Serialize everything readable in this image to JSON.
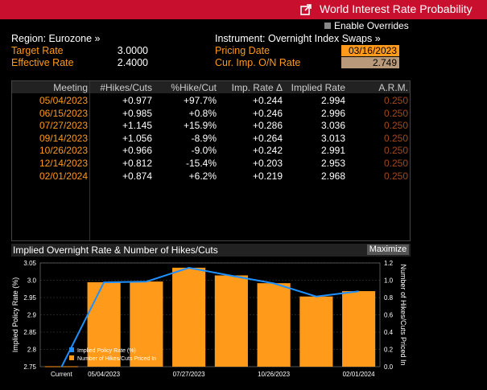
{
  "window": {
    "title": "World Interest Rate Probability"
  },
  "overrides": {
    "label": "Enable Overrides"
  },
  "left": {
    "region": "Region: Eurozone »",
    "target_label": "Target Rate",
    "target_value": "3.0000",
    "effective_label": "Effective Rate",
    "effective_value": "2.4000"
  },
  "right": {
    "instrument": "Instrument: Overnight Index Swaps »",
    "pricing_label": "Pricing Date",
    "pricing_value": "03/16/2023",
    "curimp_label": "Cur. Imp. O/N Rate",
    "curimp_value": "2.749"
  },
  "table": {
    "headers": [
      "Meeting",
      "#Hikes/Cuts",
      "%Hike/Cut",
      "Imp. Rate Δ",
      "Implied Rate",
      "A.R.M."
    ],
    "rows": [
      [
        "05/04/2023",
        "+0.977",
        "+97.7%",
        "+0.244",
        "2.994",
        "0.250"
      ],
      [
        "06/15/2023",
        "+0.985",
        "+0.8%",
        "+0.246",
        "2.996",
        "0.250"
      ],
      [
        "07/27/2023",
        "+1.145",
        "+15.9%",
        "+0.286",
        "3.036",
        "0.250"
      ],
      [
        "09/14/2023",
        "+1.056",
        "-8.9%",
        "+0.264",
        "3.013",
        "0.250"
      ],
      [
        "10/26/2023",
        "+0.966",
        "-9.0%",
        "+0.242",
        "2.991",
        "0.250"
      ],
      [
        "12/14/2023",
        "+0.812",
        "-15.4%",
        "+0.203",
        "2.953",
        "0.250"
      ],
      [
        "02/01/2024",
        "+0.874",
        "+6.2%",
        "+0.219",
        "2.968",
        "0.250"
      ]
    ]
  },
  "chart_header": {
    "title": "Implied Overnight Rate & Number of Hikes/Cuts",
    "maximize": "Maximize"
  },
  "colors": {
    "title_bar": "#c8102e",
    "bar": "#ff9a1a",
    "line": "#1e90ff",
    "orange_text": "#ff9a1a"
  },
  "chart_data": {
    "type": "bar",
    "categories": [
      "Current",
      "05/04/2023",
      "06/15/2023",
      "07/27/2023",
      "09/14/2023",
      "10/26/2023",
      "12/14/2023",
      "02/01/2024"
    ],
    "x_tick_labels": [
      "Current",
      "05/04/2023",
      "07/27/2023",
      "10/26/2023",
      "02/01/2024"
    ],
    "series": [
      {
        "name": "Implied Policy Rate (%)",
        "type": "line",
        "axis": "left",
        "values": [
          2.749,
          2.994,
          2.996,
          3.036,
          3.013,
          2.991,
          2.953,
          2.968
        ]
      },
      {
        "name": "Number of Hikes/Cuts Priced In",
        "type": "bar",
        "axis": "right",
        "values": [
          0,
          0.977,
          0.985,
          1.145,
          1.056,
          0.966,
          0.812,
          0.874
        ]
      }
    ],
    "ylabel": "Implied Policy Rate (%)",
    "y2label": "Number of Hikes/Cuts Priced In",
    "ylim": [
      2.75,
      3.05
    ],
    "y2lim": [
      0,
      1.2
    ],
    "yticks": [
      "3.05",
      "3.0",
      "2.95",
      "2.9",
      "2.85",
      "2.8",
      "2.75"
    ],
    "y2ticks": [
      "1.2",
      "1.0",
      "0.8",
      "0.6",
      "0.4",
      "0.2",
      "0.0"
    ],
    "legend_placement": "bottom-left"
  }
}
